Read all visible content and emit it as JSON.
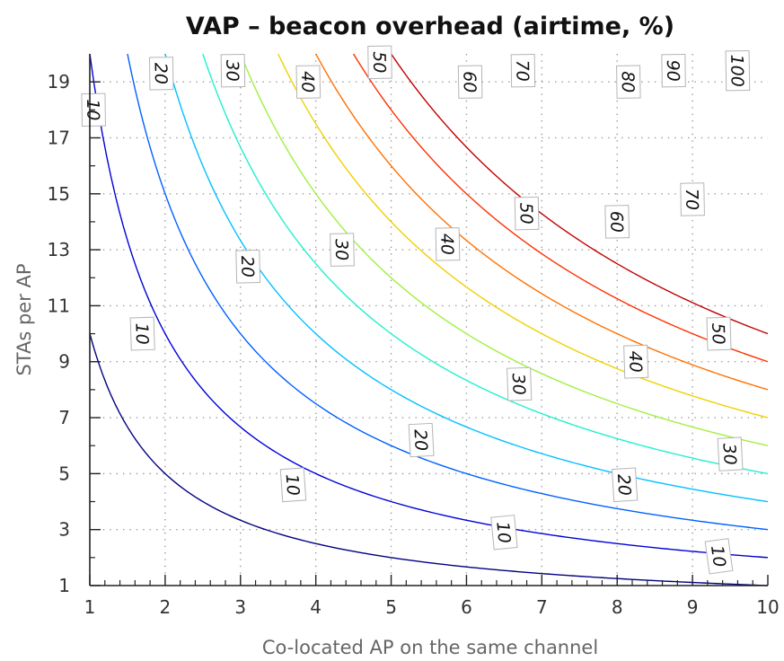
{
  "chart_data": {
    "type": "contour",
    "title": "VAP – beacon overhead (airtime, %)",
    "xlabel": "Co-located AP on the same channel",
    "ylabel": "STAs per AP",
    "xlim": [
      1,
      10
    ],
    "ylim": [
      1,
      20
    ],
    "xticks": [
      1,
      2,
      3,
      4,
      5,
      6,
      7,
      8,
      9,
      10
    ],
    "yticks": [
      1,
      3,
      5,
      7,
      9,
      11,
      13,
      15,
      17,
      19
    ],
    "grid": true,
    "model": "overhead ≈ 1.0 × x × y (percent)",
    "levels": [
      {
        "value": 10,
        "label": "10",
        "color": "#000080",
        "label_positions": [
          [
            1.05,
            18.0
          ],
          [
            1.7,
            10.0
          ],
          [
            3.7,
            4.6
          ],
          [
            6.5,
            2.9
          ],
          [
            9.35,
            2.05
          ]
        ]
      },
      {
        "value": 20,
        "label": "20",
        "color": "#0000d8",
        "label_positions": [
          [
            1.95,
            19.3
          ],
          [
            3.1,
            12.4
          ],
          [
            5.4,
            6.2
          ],
          [
            8.1,
            4.6
          ]
        ]
      },
      {
        "value": 30,
        "label": "30",
        "color": "#0060ff",
        "label_positions": [
          [
            2.9,
            19.4
          ],
          [
            4.35,
            13.0
          ],
          [
            6.7,
            8.2
          ],
          [
            9.5,
            5.7
          ]
        ]
      },
      {
        "value": 40,
        "label": "40",
        "color": "#00c0ff",
        "label_positions": [
          [
            3.9,
            19.0
          ],
          [
            5.75,
            13.2
          ],
          [
            8.25,
            9.0
          ]
        ]
      },
      {
        "value": 50,
        "label": "50",
        "color": "#20f0d0",
        "label_positions": [
          [
            4.85,
            19.7
          ],
          [
            6.8,
            14.3
          ],
          [
            9.35,
            10.0
          ]
        ]
      },
      {
        "value": 60,
        "label": "60",
        "color": "#a0f040",
        "label_positions": [
          [
            6.05,
            19.0
          ],
          [
            8.0,
            14.0
          ]
        ]
      },
      {
        "value": 70,
        "label": "70",
        "color": "#f0d000",
        "label_positions": [
          [
            6.75,
            19.4
          ],
          [
            9.0,
            14.8
          ]
        ]
      },
      {
        "value": 80,
        "label": "80",
        "color": "#ff7000",
        "label_positions": [
          [
            8.15,
            19.0
          ]
        ]
      },
      {
        "value": 90,
        "label": "90",
        "color": "#ff3000",
        "label_positions": [
          [
            8.75,
            19.4
          ]
        ]
      },
      {
        "value": 100,
        "label": "100",
        "color": "#c00000",
        "label_positions": [
          [
            9.6,
            19.4
          ]
        ]
      }
    ]
  }
}
